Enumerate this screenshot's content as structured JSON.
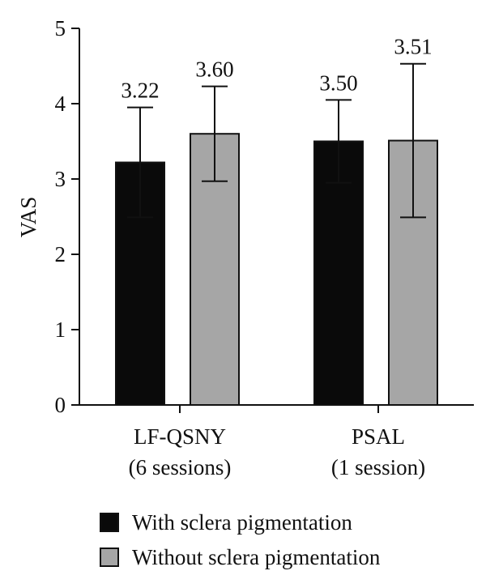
{
  "chart_data": {
    "type": "bar",
    "categories": [
      [
        "LF-QSNY",
        "(6 sessions)"
      ],
      [
        "PSAL",
        "(1 session)"
      ]
    ],
    "ylabel": "VAS",
    "ylim": [
      0,
      5
    ],
    "yticks": [
      "0",
      "1",
      "2",
      "3",
      "4",
      "5"
    ],
    "grid": false,
    "legend_position": "bottom",
    "error_bars": true,
    "series": [
      {
        "name": "With sclera pigmentation",
        "color": "#0a0a0a",
        "values": [
          3.22,
          3.5
        ],
        "error": [
          0.73,
          0.55
        ],
        "labels": [
          "3.22",
          "3.50"
        ]
      },
      {
        "name": "Without sclera pigmentation",
        "color": "#a6a6a6",
        "values": [
          3.6,
          3.51
        ],
        "error": [
          0.63,
          1.02
        ],
        "labels": [
          "3.60",
          "3.51"
        ]
      }
    ]
  }
}
